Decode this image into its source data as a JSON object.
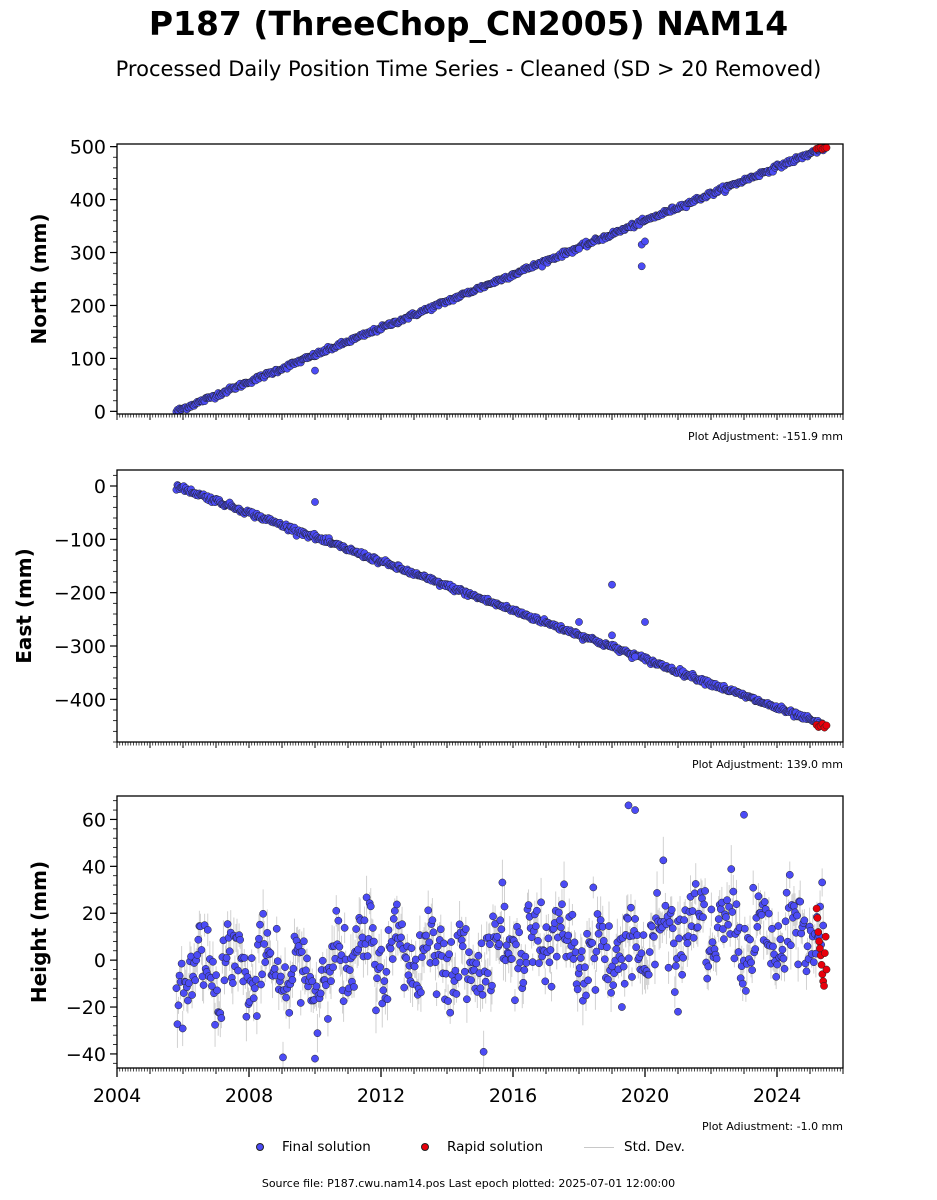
{
  "title": "P187 (ThreeChop_CN2005) NAM14",
  "subtitle": "Processed Daily Position Time Series - Cleaned (SD > 20 Removed)",
  "source": "Source file: P187.cwu.nam14.pos  Last epoch plotted: 2025-07-01 12:00:00",
  "legend": {
    "final": "Final solution",
    "rapid": "Rapid solution",
    "std": "Std. Dev."
  },
  "colors": {
    "final": "#4b4bf5",
    "rapid": "#e8000b",
    "std": "#bdbdbd",
    "edge": "#222222"
  },
  "chart_data": [
    {
      "type": "scatter",
      "ylabel": "North (mm)",
      "adjustment": "Plot Adjustment: -151.9 mm",
      "xlim": [
        2004,
        2026
      ],
      "ylim": [
        -5,
        505
      ],
      "yticks": [
        0,
        100,
        200,
        300,
        400,
        500
      ],
      "ytick_labels": [
        "0",
        "100",
        "200",
        "300",
        "400",
        "500"
      ],
      "trend": {
        "start": [
          2005.8,
          0
        ],
        "end": [
          2025.4,
          497
        ],
        "noise": 2.2
      },
      "outliers": [
        [
          2010.0,
          77
        ],
        [
          2018.0,
          307
        ],
        [
          2019.9,
          274
        ],
        [
          2019.9,
          315
        ],
        [
          2020.0,
          321
        ]
      ],
      "rapid": {
        "x_start": 2025.2,
        "x_end": 2025.5,
        "values": [
          496,
          497,
          498,
          495,
          497,
          498
        ]
      }
    },
    {
      "type": "scatter",
      "ylabel": "East (mm)",
      "adjustment": "Plot Adjustment: 139.0 mm",
      "xlim": [
        2004,
        2026
      ],
      "ylim": [
        -480,
        30
      ],
      "yticks": [
        0,
        -100,
        -200,
        -300,
        -400
      ],
      "ytick_labels": [
        "0",
        "−100",
        "−200",
        "−300",
        "−400"
      ],
      "trend": {
        "start": [
          2005.8,
          0
        ],
        "end": [
          2025.4,
          -448
        ],
        "noise": 2.5
      },
      "outliers": [
        [
          2010.0,
          -30
        ],
        [
          2018.0,
          -255
        ],
        [
          2019.0,
          -185
        ],
        [
          2019.0,
          -280
        ],
        [
          2020.0,
          -255
        ],
        [
          2019.7,
          -320
        ]
      ],
      "rapid": {
        "x_start": 2025.2,
        "x_end": 2025.5,
        "values": [
          -448,
          -452,
          -450,
          -446,
          -453,
          -449
        ]
      }
    },
    {
      "type": "scatter",
      "ylabel": "Height (mm)",
      "adjustment": "Plot Adjustment: -1.0 mm",
      "xlim": [
        2004,
        2026
      ],
      "ylim": [
        -46,
        70
      ],
      "yticks": [
        -40,
        -20,
        0,
        20,
        40,
        60
      ],
      "ytick_labels": [
        "−40",
        "−20",
        "0",
        "20",
        "40",
        "60"
      ],
      "xticks": [
        2004,
        2008,
        2012,
        2016,
        2020,
        2024
      ],
      "xtick_labels": [
        "2004",
        "2008",
        "2012",
        "2016",
        "2020",
        "2024"
      ],
      "trend": {
        "start": [
          2005.8,
          -7
        ],
        "end": [
          2025.4,
          14
        ],
        "noise": 8.5,
        "seasonal": 9
      },
      "outliers": [
        [
          2010.0,
          -42
        ],
        [
          2019.5,
          66
        ],
        [
          2019.7,
          64
        ],
        [
          2019.3,
          -20
        ],
        [
          2021.0,
          -22
        ],
        [
          2023.0,
          62
        ]
      ],
      "rapid": {
        "x_start": 2025.2,
        "x_end": 2025.5,
        "values": [
          22,
          18,
          12,
          8,
          5,
          2,
          -2,
          -6,
          -9,
          -11,
          3,
          10,
          -4
        ]
      }
    }
  ]
}
